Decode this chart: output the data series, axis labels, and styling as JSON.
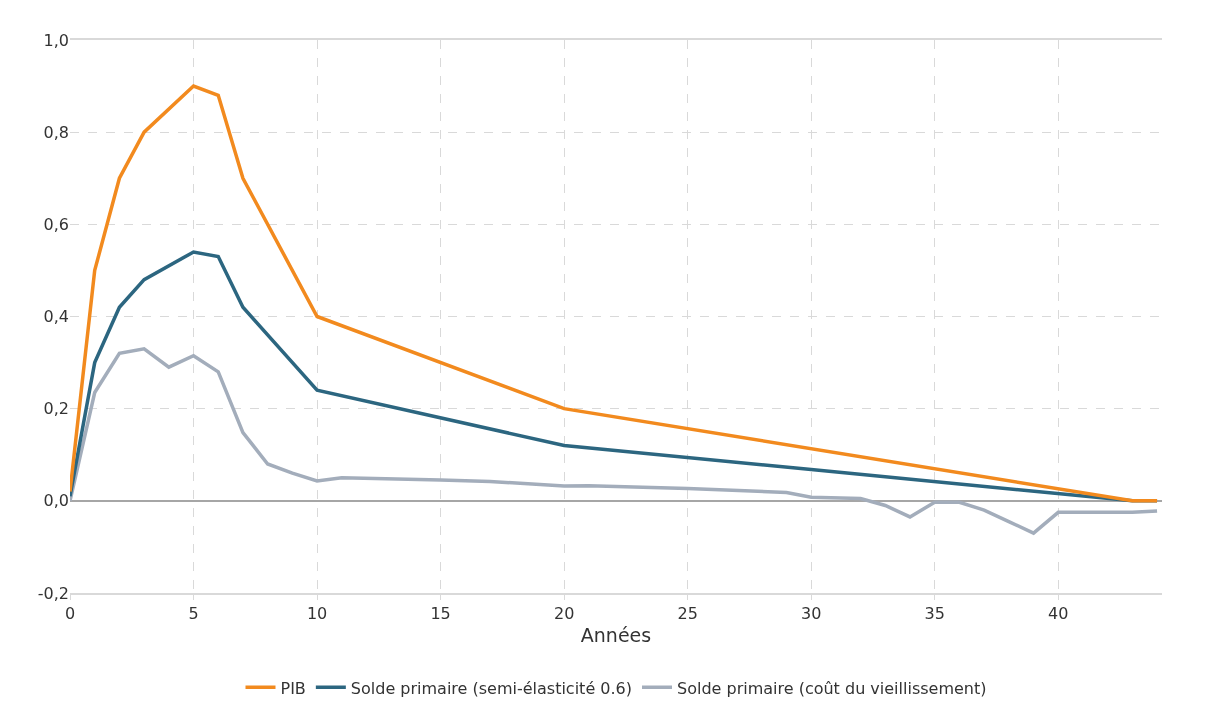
{
  "chart_data": {
    "type": "line",
    "xlabel": "Années",
    "xlim": [
      0,
      44.2
    ],
    "xticks": [
      0,
      5,
      10,
      15,
      20,
      25,
      30,
      35,
      40
    ],
    "ylim": [
      -0.2,
      1.0
    ],
    "yticks": [
      {
        "value": -0.2,
        "label": "-0,2"
      },
      {
        "value": 0,
        "label": "0,0"
      },
      {
        "value": 0.2,
        "label": "0,2"
      },
      {
        "value": 0.4,
        "label": "0,4"
      },
      {
        "value": 0.6,
        "label": "0,6"
      },
      {
        "value": 0.8,
        "label": "0,8"
      },
      {
        "value": 1.0,
        "label": "1,0"
      }
    ],
    "grid": true,
    "legend": "bottom",
    "marker": "none",
    "line_style": "solid",
    "series": [
      {
        "name": "PIB",
        "color": "#f28a1e",
        "x": [
          0,
          1,
          2,
          3,
          5,
          6,
          7,
          10,
          20,
          43,
          44
        ],
        "values": [
          0.02,
          0.5,
          0.7,
          0.8,
          0.9,
          0.88,
          0.7,
          0.4,
          0.2,
          0,
          0
        ]
      },
      {
        "name": "Solde primaire (semi-élasticité 0.6)",
        "color": "#2c6680",
        "x": [
          0,
          1,
          2,
          3,
          5,
          6,
          7,
          10,
          20,
          30,
          43,
          44
        ],
        "values": [
          0.01,
          0.3,
          0.42,
          0.48,
          0.54,
          0.53,
          0.42,
          0.24,
          0.12,
          0.068,
          0,
          0
        ]
      },
      {
        "name": "Solde primaire (coût du vieillissement)",
        "color": "#a3adbb",
        "x": [
          0,
          1,
          2,
          3,
          4,
          5,
          6,
          7,
          8,
          9,
          10,
          11,
          15,
          17,
          20,
          21,
          25,
          29,
          30,
          32,
          33,
          34,
          35,
          36,
          37,
          38,
          39,
          40,
          43,
          44
        ],
        "values": [
          0,
          0.235,
          0.32,
          0.33,
          0.29,
          0.315,
          0.28,
          0.148,
          0.08,
          0.06,
          0.043,
          0.05,
          0.045,
          0.042,
          0.032,
          0.033,
          0.027,
          0.018,
          0.008,
          0.005,
          -0.01,
          -0.035,
          -0.003,
          -0.003,
          -0.02,
          -0.045,
          -0.07,
          -0.025,
          -0.025,
          -0.022
        ]
      }
    ]
  }
}
